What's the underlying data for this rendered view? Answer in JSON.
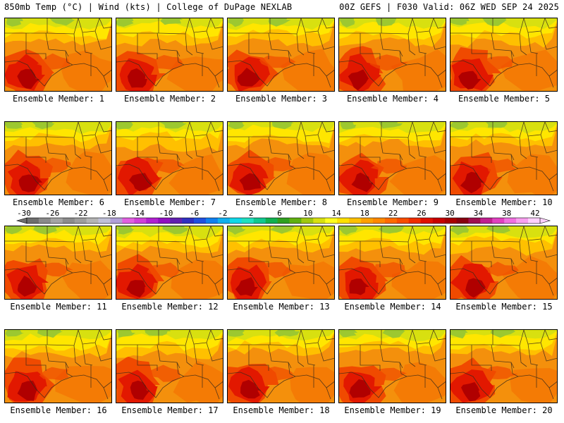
{
  "header": {
    "left": "850mb Temp (°C) | Wind (kts) | College of DuPage NEXLAB",
    "right": "00Z GEFS | F030 Valid: 06Z WED SEP 24 2025"
  },
  "members": [
    {
      "label": "Ensemble Member: 1",
      "id": 1
    },
    {
      "label": "Ensemble Member: 2",
      "id": 2
    },
    {
      "label": "Ensemble Member: 3",
      "id": 3
    },
    {
      "label": "Ensemble Member: 4",
      "id": 4
    },
    {
      "label": "Ensemble Member: 5",
      "id": 5
    },
    {
      "label": "Ensemble Member: 6",
      "id": 6
    },
    {
      "label": "Ensemble Member: 7",
      "id": 7
    },
    {
      "label": "Ensemble Member: 8",
      "id": 8
    },
    {
      "label": "Ensemble Member: 9",
      "id": 9
    },
    {
      "label": "Ensemble Member: 10",
      "id": 10
    },
    {
      "label": "Ensemble Member: 11",
      "id": 11
    },
    {
      "label": "Ensemble Member: 12",
      "id": 12
    },
    {
      "label": "Ensemble Member: 13",
      "id": 13
    },
    {
      "label": "Ensemble Member: 14",
      "id": 14
    },
    {
      "label": "Ensemble Member: 15",
      "id": 15
    },
    {
      "label": "Ensemble Member: 16",
      "id": 16
    },
    {
      "label": "Ensemble Member: 17",
      "id": 17
    },
    {
      "label": "Ensemble Member: 18",
      "id": 18
    },
    {
      "label": "Ensemble Member: 19",
      "id": 19
    },
    {
      "label": "Ensemble Member: 20",
      "id": 20
    }
  ],
  "colorbar": {
    "ticks": [
      "-30",
      "-26",
      "-22",
      "-18",
      "-14",
      "-10",
      "-6",
      "-2",
      "2",
      "6",
      "10",
      "14",
      "18",
      "22",
      "26",
      "30",
      "34",
      "38",
      "42"
    ],
    "colors": [
      "#6e6e6e",
      "#8a8a8a",
      "#a4a4a4",
      "#8c8c8c",
      "#9e9e9e",
      "#b4b4b4",
      "#c0c0d8",
      "#b0a0d8",
      "#e060e0",
      "#d040d8",
      "#b020d0",
      "#9010c0",
      "#6020b0",
      "#3030c0",
      "#2050e0",
      "#1080f0",
      "#10b0f0",
      "#10d8e8",
      "#20e0c0",
      "#10c890",
      "#10b050",
      "#30a020",
      "#60b010",
      "#a0c810",
      "#d8e010",
      "#ffff20",
      "#ffe000",
      "#ffc000",
      "#ffa000",
      "#ff8800",
      "#ff6a00",
      "#f84c00",
      "#f02c00",
      "#e01000",
      "#c80000",
      "#a80000",
      "#880010",
      "#a01050",
      "#c02090",
      "#e040c0",
      "#f070e0",
      "#f8a0f0",
      "#ffd0ff"
    ]
  },
  "field_colors": {
    "cool_green": "#9cc830",
    "yellow_green": "#d8e010",
    "yellow": "#ffe600",
    "light_orange": "#ffc000",
    "orange": "#f4900c",
    "dark_orange": "#f46a00",
    "red_orange": "#f04a00",
    "red": "#e21800",
    "dark_red": "#b00000",
    "boundary": "#3a2a1a"
  }
}
